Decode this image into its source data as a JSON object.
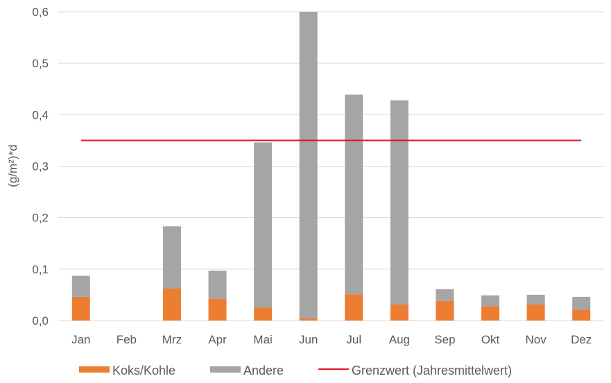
{
  "chart_data": {
    "type": "bar",
    "stacked": true,
    "ylabel": "(g/m²)*d",
    "ylim": [
      0,
      0.6
    ],
    "yticks": [
      "0,0",
      "0,1",
      "0,2",
      "0,3",
      "0,4",
      "0,5",
      "0,6"
    ],
    "ytick_values": [
      0,
      0.1,
      0.2,
      0.3,
      0.4,
      0.5,
      0.6
    ],
    "grid": true,
    "legend_position": "bottom",
    "categories": [
      "Jan",
      "Feb",
      "Mrz",
      "Apr",
      "Mai",
      "Jun",
      "Jul",
      "Aug",
      "Sep",
      "Okt",
      "Nov",
      "Dez"
    ],
    "series": [
      {
        "name": "Koks/Kohle",
        "color": "#ED7D31",
        "values": [
          0.046,
          0,
          0.062,
          0.042,
          0.025,
          0.004,
          0.051,
          0.031,
          0.038,
          0.028,
          0.031,
          0.021
        ]
      },
      {
        "name": "Andere",
        "color": "#A5A5A5",
        "values": [
          0.041,
          0,
          0.121,
          0.055,
          0.321,
          0.596,
          0.388,
          0.397,
          0.023,
          0.021,
          0.019,
          0.025
        ]
      }
    ],
    "line": {
      "name": "Grenzwert (Jahresmittelwert)",
      "color": "#E8141B",
      "value": 0.35
    }
  }
}
